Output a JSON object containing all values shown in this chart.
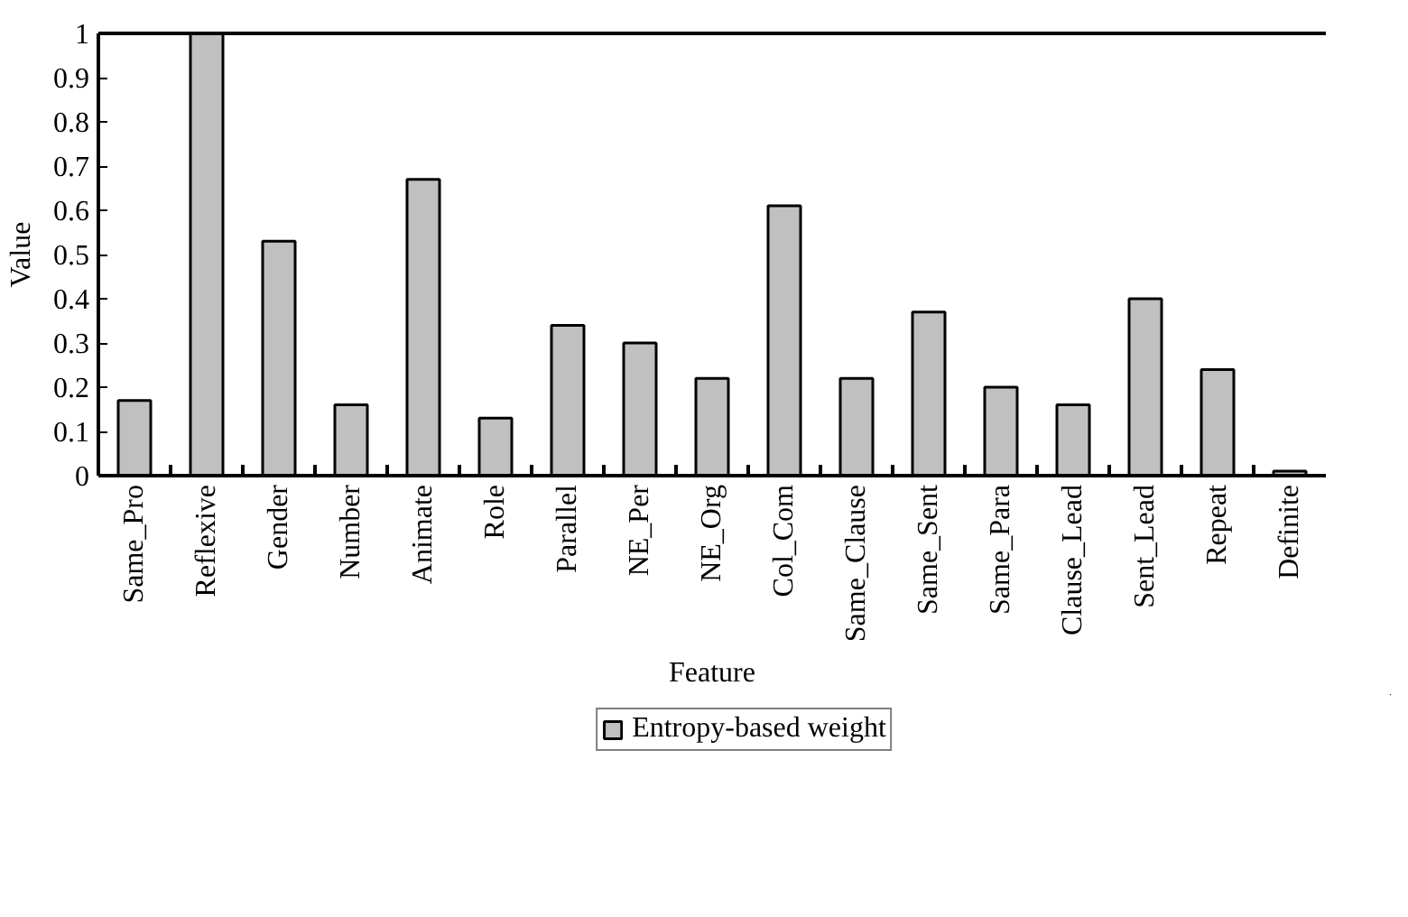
{
  "chart_data": {
    "type": "bar",
    "xlabel": "Feature",
    "ylabel": "Value",
    "categories": [
      "Same_Pro",
      "Reflexive",
      "Gender",
      "Number",
      "Animate",
      "Role",
      "Parallel",
      "NE_Per",
      "NE_Org",
      "Col_Com",
      "Same_Clause",
      "Same_Sent",
      "Same_Para",
      "Clause_Lead",
      "Sent_Lead",
      "Repeat",
      "Definite"
    ],
    "series": [
      {
        "name": "Entropy-based weight",
        "color": "#c0c0c0",
        "values": [
          0.17,
          1.0,
          0.53,
          0.16,
          0.67,
          0.13,
          0.34,
          0.3,
          0.22,
          0.61,
          0.22,
          0.37,
          0.2,
          0.16,
          0.4,
          0.24,
          0.01
        ]
      }
    ],
    "ylim": [
      0,
      1
    ],
    "yticks": [
      0,
      0.1,
      0.2,
      0.3,
      0.4,
      0.5,
      0.6,
      0.7,
      0.8,
      0.9,
      1
    ],
    "grid": false,
    "legend": "bottom"
  }
}
